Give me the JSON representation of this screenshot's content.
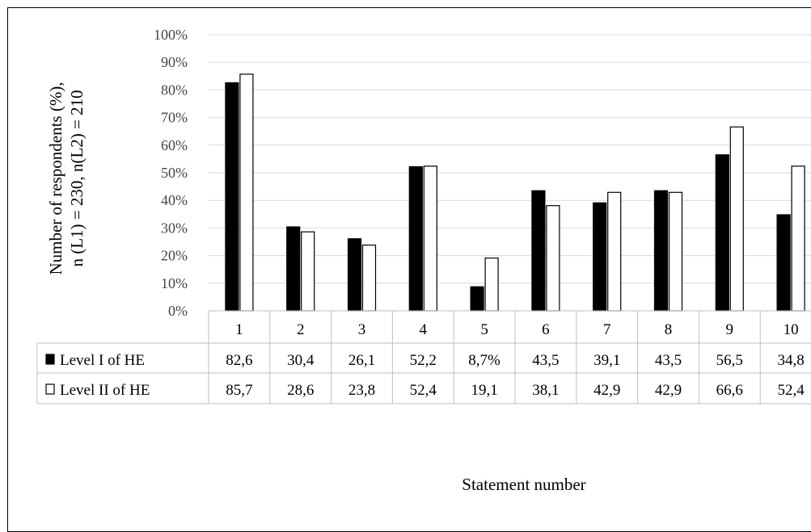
{
  "chart_data": {
    "type": "bar",
    "title": "",
    "ylabel_lines": [
      "Number of respondents (%),",
      "n (L1) = 230,  n(L2) = 210"
    ],
    "xlabel": "Statement number",
    "ylim": [
      0,
      100
    ],
    "y_ticks": [
      "0%",
      "10%",
      "20%",
      "30%",
      "40%",
      "50%",
      "60%",
      "70%",
      "80%",
      "90%",
      "100%"
    ],
    "grid": true,
    "legend_position": "data table rows below axis",
    "categories": [
      "1",
      "2",
      "3",
      "4",
      "5",
      "6",
      "7",
      "8",
      "9",
      "10"
    ],
    "series": [
      {
        "name": "Level I of HE",
        "color": "#000000",
        "values": [
          82.6,
          30.4,
          26.1,
          52.2,
          8.7,
          43.5,
          39.1,
          43.5,
          56.5,
          34.8
        ],
        "labels": [
          "82,6",
          "30,4",
          "26,1",
          "52,2",
          "8,7%",
          "43,5",
          "39,1",
          "43,5",
          "56,5",
          "34,8"
        ]
      },
      {
        "name": "Level II of HE",
        "color": "#ffffff",
        "values": [
          85.7,
          28.6,
          23.8,
          52.4,
          19.1,
          38.1,
          42.9,
          42.9,
          66.6,
          52.4
        ],
        "labels": [
          "85,7",
          "28,6",
          "23,8",
          "52,4",
          "19,1",
          "38,1",
          "42,9",
          "42,9",
          "66,6",
          "52,4"
        ]
      }
    ]
  }
}
